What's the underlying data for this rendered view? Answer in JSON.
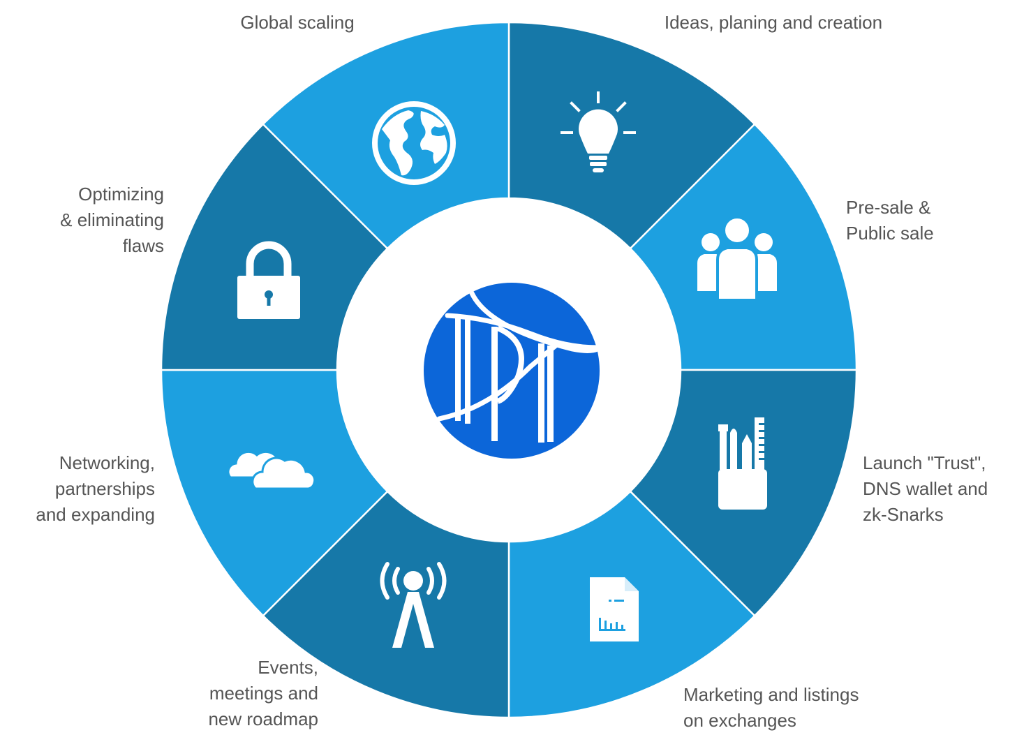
{
  "colors": {
    "light": "#1da0e0",
    "dark": "#1678a8",
    "center": "#ffffff",
    "logo": "#0c66d9",
    "label": "#555555",
    "icon": "#ffffff"
  },
  "segments": [
    {
      "id": "ideas",
      "shade": "dark",
      "icon": "lightbulb-icon",
      "label": [
        "Ideas, planing and creation"
      ]
    },
    {
      "id": "presale",
      "shade": "light",
      "icon": "people-icon",
      "label": [
        "Pre-sale &",
        "Public sale"
      ]
    },
    {
      "id": "launch",
      "shade": "dark",
      "icon": "tools-cup-icon",
      "label": [
        "Launch \"Trust\",",
        "DNS wallet and",
        "zk-Snarks"
      ]
    },
    {
      "id": "marketing",
      "shade": "light",
      "icon": "document-chart-icon",
      "label": [
        "Marketing and listings",
        "on exchanges"
      ]
    },
    {
      "id": "events",
      "shade": "dark",
      "icon": "broadcast-tower-icon",
      "label": [
        "Events,",
        "meetings and",
        "new roadmap"
      ]
    },
    {
      "id": "networking",
      "shade": "light",
      "icon": "cloud-icon",
      "label": [
        "Networking,",
        "partnerships",
        "and expanding"
      ]
    },
    {
      "id": "optimizing",
      "shade": "dark",
      "icon": "padlock-icon",
      "label": [
        "Optimizing",
        "& eliminating",
        "flaws"
      ]
    },
    {
      "id": "scaling",
      "shade": "light",
      "icon": "globe-icon",
      "label": [
        "Global scaling"
      ]
    }
  ],
  "logo": {
    "icon": "dpt-logo-icon"
  }
}
